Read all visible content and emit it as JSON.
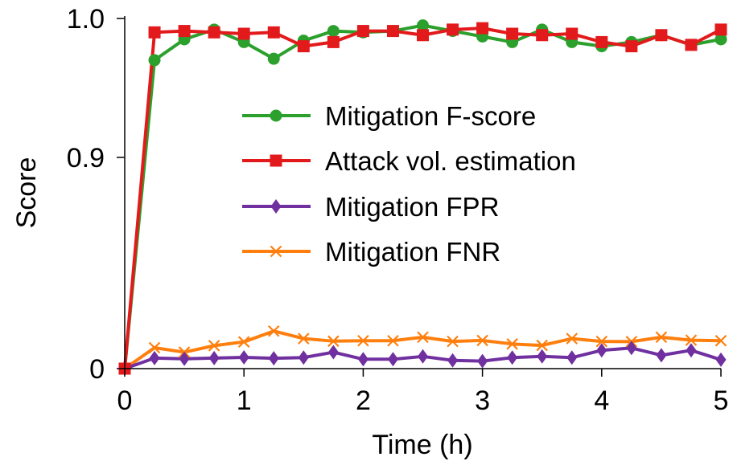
{
  "chart_data": {
    "type": "line",
    "xlabel": "Time (h)",
    "ylabel": "Score",
    "xlim": [
      0,
      5
    ],
    "x_ticks": [
      0,
      1,
      2,
      3,
      4,
      5
    ],
    "x_tick_labels": [
      "0",
      "1",
      "2",
      "3",
      "4",
      "5"
    ],
    "y_axis_breaks": [
      {
        "value": 0,
        "label": "0"
      },
      {
        "value": 0.9,
        "label": "0.9"
      },
      {
        "value": 1.0,
        "label": "1.0"
      }
    ],
    "grid": false,
    "legend_position": "center-right",
    "x": [
      0,
      0.25,
      0.5,
      0.75,
      1.0,
      1.25,
      1.5,
      1.75,
      2.0,
      2.25,
      2.5,
      2.75,
      3.0,
      3.25,
      3.5,
      3.75,
      4.0,
      4.25,
      4.5,
      4.75,
      5.0
    ],
    "series": [
      {
        "name": "Mitigation F-score",
        "color": "#2ca02c",
        "marker": "circle",
        "values": [
          0,
          0.97,
          0.985,
          0.992,
          0.983,
          0.971,
          0.984,
          0.991,
          0.99,
          0.991,
          0.995,
          0.991,
          0.987,
          0.983,
          0.992,
          0.983,
          0.98,
          0.983,
          0.988,
          0.981,
          0.985
        ]
      },
      {
        "name": "Attack vol. estimation",
        "color": "#e31a1c",
        "marker": "square",
        "values": [
          0,
          0.99,
          0.991,
          0.99,
          0.989,
          0.99,
          0.98,
          0.983,
          0.991,
          0.991,
          0.988,
          0.992,
          0.993,
          0.989,
          0.988,
          0.989,
          0.983,
          0.98,
          0.988,
          0.981,
          0.992
        ]
      },
      {
        "name": "Mitigation FPR",
        "color": "#7030a0",
        "marker": "diamond",
        "values": [
          0,
          0.045,
          0.042,
          0.045,
          0.048,
          0.044,
          0.047,
          0.07,
          0.04,
          0.04,
          0.052,
          0.035,
          0.032,
          0.047,
          0.052,
          0.047,
          0.078,
          0.088,
          0.057,
          0.078,
          0.038
        ]
      },
      {
        "name": "Mitigation FNR",
        "color": "#ff7f0e",
        "marker": "x",
        "values": [
          0,
          0.089,
          0.07,
          0.098,
          0.114,
          0.16,
          0.128,
          0.117,
          0.119,
          0.119,
          0.134,
          0.116,
          0.12,
          0.105,
          0.099,
          0.128,
          0.116,
          0.115,
          0.134,
          0.121,
          0.119
        ]
      }
    ]
  }
}
